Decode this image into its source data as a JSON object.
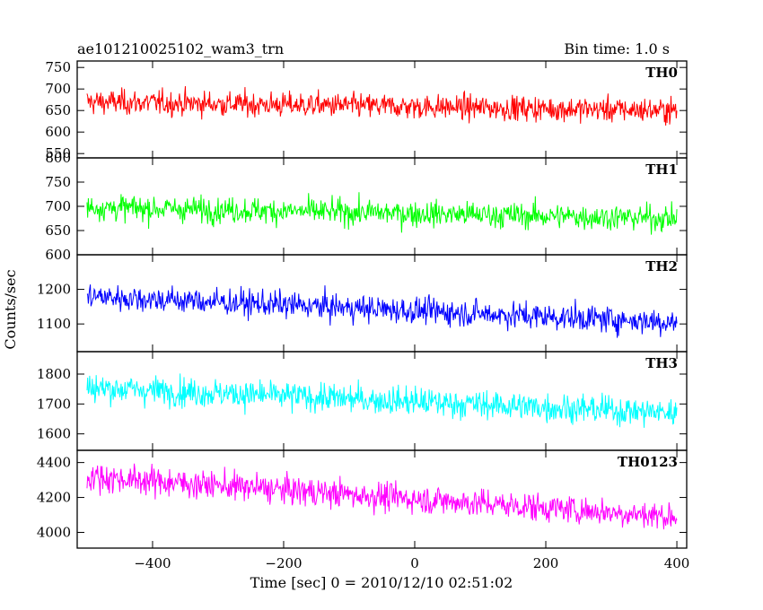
{
  "chart_data": {
    "type": "line",
    "title_left": "ae101210025102_wam3_trn",
    "title_right": "Bin time: 1.0 s",
    "xlabel": "Time [sec] 0 = 2010/12/10 02:51:02",
    "ylabel": "Counts/sec",
    "x_range": [
      -515,
      415
    ],
    "x_data_range": [
      -500,
      400
    ],
    "x_ticks": [
      -400,
      -200,
      0,
      200,
      400
    ],
    "bin_time": 1.0,
    "grid": false,
    "panels": [
      {
        "name": "TH0",
        "color": "#ff0000",
        "ylim": [
          540,
          765
        ],
        "yticks": [
          550,
          600,
          650,
          700,
          750
        ],
        "ytick_labels": [
          "550",
          "600",
          "650",
          "700",
          "750"
        ],
        "mean_start": 670,
        "mean_end": 650,
        "noise_sd": 24
      },
      {
        "name": "TH1",
        "color": "#00ff00",
        "ylim": [
          600,
          800
        ],
        "yticks": [
          600,
          650,
          700,
          750,
          800
        ],
        "ytick_labels": [
          "600",
          "650",
          "700",
          "750",
          "800"
        ],
        "mean_start": 698,
        "mean_end": 675,
        "noise_sd": 22
      },
      {
        "name": "TH2",
        "color": "#0000ff",
        "ylim": [
          1020,
          1300
        ],
        "yticks": [
          1100,
          1200
        ],
        "ytick_labels": [
          "1100",
          "1200"
        ],
        "mean_start": 1180,
        "mean_end": 1105,
        "noise_sd": 32
      },
      {
        "name": "TH3",
        "color": "#00ffff",
        "ylim": [
          1545,
          1875
        ],
        "yticks": [
          1600,
          1700,
          1800
        ],
        "ytick_labels": [
          "1600",
          "1700",
          "1800"
        ],
        "mean_start": 1755,
        "mean_end": 1670,
        "noise_sd": 40
      },
      {
        "name": "TH0123",
        "color": "#ff00ff",
        "ylim": [
          3910,
          4470
        ],
        "yticks": [
          4000,
          4200,
          4400
        ],
        "ytick_labels": [
          "4000",
          "4200",
          "4400"
        ],
        "mean_start": 4320,
        "mean_end": 4090,
        "noise_sd": 68
      }
    ]
  }
}
